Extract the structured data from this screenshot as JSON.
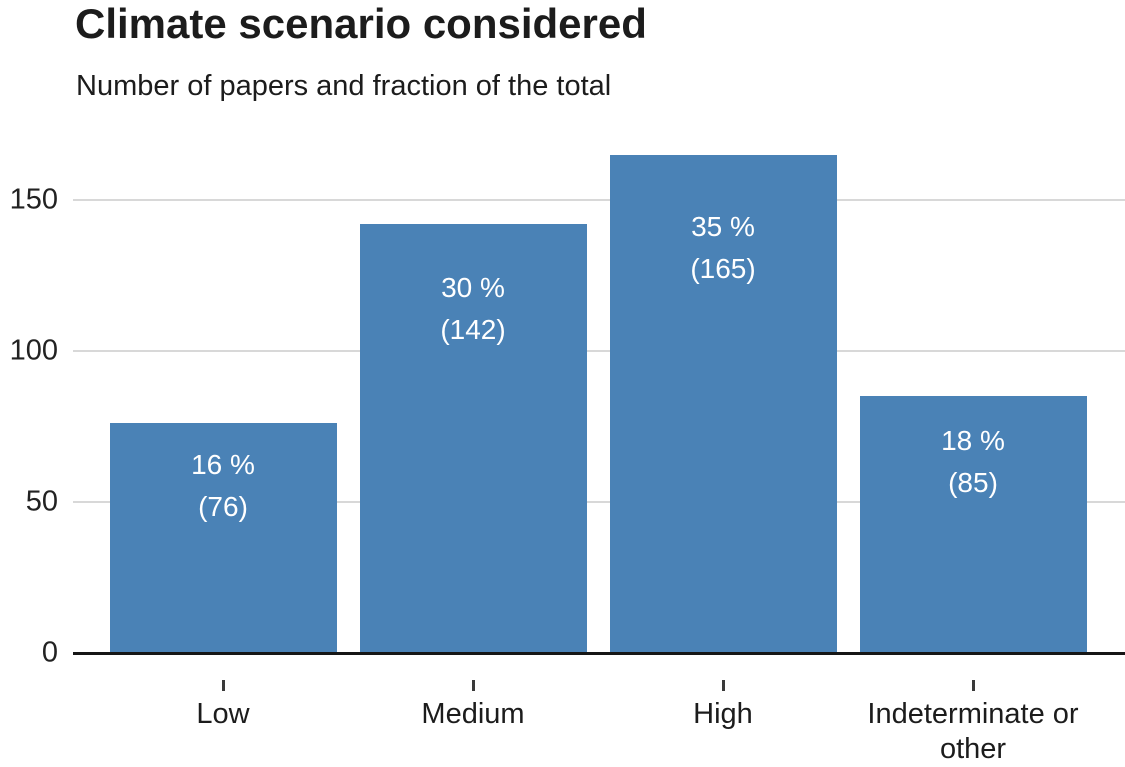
{
  "header": {
    "title": "Climate scenario considered",
    "subtitle": "Number of papers and fraction of the total"
  },
  "chart_data": {
    "type": "bar",
    "title": "Climate scenario considered",
    "subtitle": "Number of papers and fraction of the total",
    "categories": [
      "Low",
      "Medium",
      "High",
      "Indeterminate or other"
    ],
    "values": [
      76,
      142,
      165,
      85
    ],
    "percent_labels": [
      "16 %",
      "30 %",
      "35 %",
      "18 %"
    ],
    "count_labels": [
      "(76)",
      "(142)",
      "(165)",
      "(85)"
    ],
    "xlabel": "",
    "ylabel": "",
    "yticks": [
      0,
      50,
      100,
      150
    ],
    "ylim": [
      0,
      173
    ],
    "grid": "horizontal-only",
    "legend": "none",
    "bar_color": "#4a82b6",
    "bar_label_color": "#ffffff",
    "gridline_color": "#d8d8d8",
    "axis_line_color": "#161616",
    "text_color": "#1c1c1c"
  }
}
